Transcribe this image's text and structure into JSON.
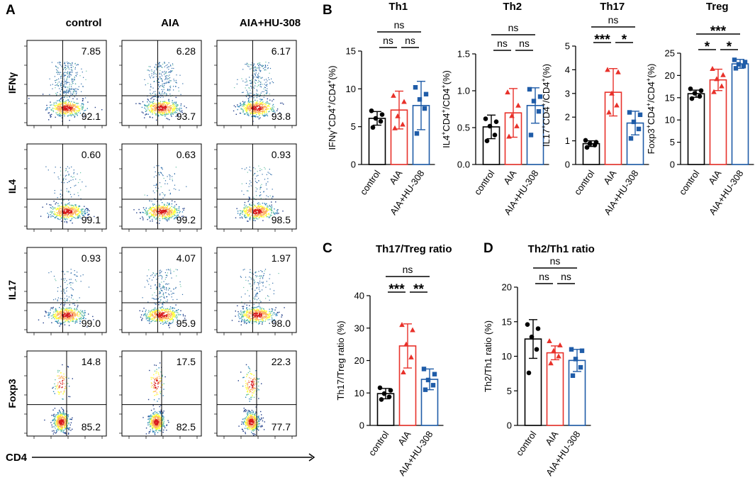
{
  "panels": {
    "A": {
      "letter": "A",
      "columns": [
        "control",
        "AIA",
        "AIA+HU-308"
      ],
      "markers": [
        "IFNγ",
        "IL4",
        "IL17",
        "Foxp3"
      ],
      "x_axis": "CD4",
      "values": [
        [
          [
            "7.85",
            "92.1"
          ],
          [
            "6.28",
            "93.7"
          ],
          [
            "6.17",
            "93.8"
          ]
        ],
        [
          [
            "0.60",
            "99.1"
          ],
          [
            "0.63",
            "99.2"
          ],
          [
            "0.93",
            "98.5"
          ]
        ],
        [
          [
            "0.93",
            "99.0"
          ],
          [
            "4.07",
            "95.9"
          ],
          [
            "1.97",
            "98.0"
          ]
        ],
        [
          [
            "14.8",
            "85.2"
          ],
          [
            "17.5",
            "82.5"
          ],
          [
            "22.3",
            "77.7"
          ]
        ]
      ]
    },
    "B": {
      "letter": "B"
    },
    "C": {
      "letter": "C"
    },
    "D": {
      "letter": "D"
    }
  },
  "colors": {
    "control": "#000000",
    "AIA": "#e8312a",
    "AIA+HU-308": "#1f5ca8"
  },
  "chart_data": [
    {
      "id": "th1",
      "type": "bar",
      "title": "Th1",
      "ylabel_parts": [
        [
          "IFNγ",
          0
        ],
        [
          "+",
          1
        ],
        [
          "CD4",
          0
        ],
        [
          "+",
          1
        ],
        [
          "/CD4",
          0
        ],
        [
          "+",
          1
        ],
        [
          "(%)",
          0
        ]
      ],
      "categories": [
        "control",
        "AIA",
        "AIA+HU-308"
      ],
      "ylim": [
        0,
        15
      ],
      "yticks": [
        0,
        5,
        10,
        15
      ],
      "ytick_labels": [
        "0",
        "5",
        "10",
        "15"
      ],
      "means": [
        6.1,
        7.2,
        7.8
      ],
      "sd": [
        0.9,
        2.5,
        3.2
      ],
      "points": [
        [
          4.9,
          5.7,
          6.1,
          6.6,
          7.1
        ],
        [
          4.8,
          5.3,
          6.4,
          8.3,
          9.1
        ],
        [
          4.1,
          7.4,
          8.6,
          9.3,
          10.2
        ]
      ],
      "markers": [
        "circle",
        "triangle",
        "square"
      ],
      "significance": [
        {
          "between": [
            0,
            1
          ],
          "label": "ns",
          "level": 1
        },
        {
          "between": [
            1,
            2
          ],
          "label": "ns",
          "level": 1
        },
        {
          "between": [
            0,
            2
          ],
          "label": "ns",
          "level": 2
        }
      ]
    },
    {
      "id": "th2",
      "type": "bar",
      "title": "Th2",
      "ylabel_parts": [
        [
          "IL4",
          0
        ],
        [
          "+",
          1
        ],
        [
          "CD4",
          0
        ],
        [
          "+",
          1
        ],
        [
          "/CD4",
          0
        ],
        [
          "+",
          1
        ],
        [
          "(%)",
          0
        ]
      ],
      "categories": [
        "control",
        "AIA",
        "AIA+HU-308"
      ],
      "ylim": [
        0,
        1.5
      ],
      "yticks": [
        0,
        0.5,
        1.0,
        1.5
      ],
      "ytick_labels": [
        "0.0",
        "0.5",
        "1.0",
        "1.5"
      ],
      "means": [
        0.51,
        0.7,
        0.8
      ],
      "sd": [
        0.16,
        0.33,
        0.24
      ],
      "points": [
        [
          0.32,
          0.4,
          0.52,
          0.58,
          0.62
        ],
        [
          0.38,
          0.52,
          0.66,
          0.8,
          0.98
        ],
        [
          0.4,
          0.72,
          0.86,
          0.92,
          1.02
        ]
      ],
      "markers": [
        "circle",
        "triangle",
        "square"
      ],
      "significance": [
        {
          "between": [
            0,
            1
          ],
          "label": "ns",
          "level": 1
        },
        {
          "between": [
            1,
            2
          ],
          "label": "ns",
          "level": 1
        },
        {
          "between": [
            0,
            2
          ],
          "label": "ns",
          "level": 2
        }
      ]
    },
    {
      "id": "th17",
      "type": "bar",
      "title": "Th17",
      "ylabel_parts": [
        [
          "IL17",
          0
        ],
        [
          "+",
          1
        ],
        [
          "CD4",
          0
        ],
        [
          "+",
          1
        ],
        [
          "/CD4",
          0
        ],
        [
          "+",
          1
        ],
        [
          "(%)",
          0
        ]
      ],
      "categories": [
        "control",
        "AIA",
        "AIA+HU-308"
      ],
      "ylim": [
        0,
        5
      ],
      "yticks": [
        0,
        1,
        2,
        3,
        4,
        5
      ],
      "ytick_labels": [
        "0",
        "1",
        "2",
        "3",
        "4",
        "5"
      ],
      "means": [
        0.88,
        3.05,
        1.75
      ],
      "sd": [
        0.12,
        1.0,
        0.5
      ],
      "points": [
        [
          0.72,
          0.82,
          0.88,
          0.94,
          1.02
        ],
        [
          2.2,
          2.5,
          3.0,
          3.9,
          4.0
        ],
        [
          1.1,
          1.5,
          1.8,
          2.1,
          2.2
        ]
      ],
      "markers": [
        "circle",
        "triangle",
        "square"
      ],
      "significance": [
        {
          "between": [
            0,
            1
          ],
          "label": "***",
          "level": 1
        },
        {
          "between": [
            1,
            2
          ],
          "label": "*",
          "level": 1
        },
        {
          "between": [
            0,
            2
          ],
          "label": "ns",
          "level": 2
        }
      ]
    },
    {
      "id": "treg",
      "type": "bar",
      "title": "Treg",
      "ylabel_parts": [
        [
          "Foxp3",
          0
        ],
        [
          "+",
          1
        ],
        [
          "CD4",
          0
        ],
        [
          "+",
          1
        ],
        [
          "/CD4",
          0
        ],
        [
          "+",
          1
        ],
        [
          "(%)",
          0
        ]
      ],
      "categories": [
        "control",
        "AIA",
        "AIA+HU-308"
      ],
      "ylim": [
        0,
        25
      ],
      "yticks": [
        0,
        5,
        10,
        15,
        20,
        25
      ],
      "ytick_labels": [
        "0",
        "5",
        "10",
        "15",
        "20",
        "25"
      ],
      "means": [
        15.9,
        19.0,
        22.6
      ],
      "sd": [
        0.8,
        2.4,
        1.0
      ],
      "points": [
        [
          14.8,
          15.3,
          16.0,
          16.6,
          17.0
        ],
        [
          16.3,
          17.6,
          19.2,
          20.1,
          21.5
        ],
        [
          21.6,
          22.1,
          22.5,
          23.0,
          23.5
        ]
      ],
      "markers": [
        "circle",
        "triangle",
        "square"
      ],
      "significance": [
        {
          "between": [
            0,
            1
          ],
          "label": "*",
          "level": 1
        },
        {
          "between": [
            1,
            2
          ],
          "label": "*",
          "level": 1
        },
        {
          "between": [
            0,
            2
          ],
          "label": "***",
          "level": 2
        }
      ]
    },
    {
      "id": "th17treg",
      "type": "bar",
      "title": "Th17/Treg ratio",
      "ylabel_parts": [
        [
          "Th17/Treg ratio (%)",
          0
        ]
      ],
      "categories": [
        "control",
        "AIA",
        "AIA+HU-308"
      ],
      "ylim": [
        0,
        40
      ],
      "yticks": [
        0,
        10,
        20,
        30,
        40
      ],
      "ytick_labels": [
        "0",
        "10",
        "20",
        "30",
        "40"
      ],
      "means": [
        9.8,
        24.5,
        14.2
      ],
      "sd": [
        1.6,
        6.8,
        3.2
      ],
      "points": [
        [
          8.0,
          8.8,
          9.8,
          10.8,
          11.6
        ],
        [
          16.4,
          21.0,
          25.0,
          29.4,
          31.0
        ],
        [
          11.0,
          12.4,
          14.0,
          15.8,
          17.4
        ]
      ],
      "markers": [
        "circle",
        "triangle",
        "square"
      ],
      "significance": [
        {
          "between": [
            0,
            1
          ],
          "label": "***",
          "level": 1
        },
        {
          "between": [
            1,
            2
          ],
          "label": "**",
          "level": 1
        },
        {
          "between": [
            0,
            2
          ],
          "label": "ns",
          "level": 2
        }
      ]
    },
    {
      "id": "th2th1",
      "type": "bar",
      "title": "Th2/Th1 ratio",
      "ylabel_parts": [
        [
          "Th2/Th1 ratio (%)",
          0
        ]
      ],
      "categories": [
        "control",
        "AIA",
        "AIA+HU-308"
      ],
      "ylim": [
        0,
        20
      ],
      "yticks": [
        0,
        5,
        10,
        15,
        20
      ],
      "ytick_labels": [
        "0",
        "5",
        "10",
        "15",
        "20"
      ],
      "means": [
        12.5,
        10.5,
        9.4
      ],
      "sd": [
        2.8,
        1.0,
        1.6
      ],
      "points": [
        [
          7.6,
          11.0,
          12.8,
          14.0,
          14.6
        ],
        [
          9.0,
          10.0,
          10.8,
          11.6,
          12.2
        ],
        [
          7.2,
          8.4,
          9.6,
          10.8,
          11.0
        ]
      ],
      "markers": [
        "circle",
        "triangle",
        "square"
      ],
      "significance": [
        {
          "between": [
            0,
            1
          ],
          "label": "ns",
          "level": 1
        },
        {
          "between": [
            1,
            2
          ],
          "label": "ns",
          "level": 1
        },
        {
          "between": [
            0,
            2
          ],
          "label": "ns",
          "level": 2
        }
      ]
    }
  ]
}
